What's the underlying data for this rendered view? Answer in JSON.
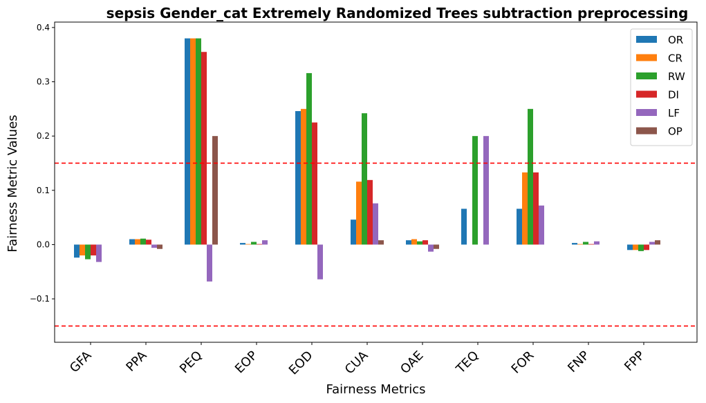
{
  "chart_data": {
    "type": "bar",
    "title": "sepsis Gender_cat Extremely Randomized Trees subtraction preprocessing",
    "xlabel": "Fairness Metrics",
    "ylabel": "Fairness Metric Values",
    "ylim": [
      -0.18,
      0.41
    ],
    "yticks": [
      -0.1,
      0.0,
      0.1,
      0.2,
      0.3,
      0.4
    ],
    "ytick_labels": [
      "−0.1",
      "0.0",
      "0.1",
      "0.2",
      "0.3",
      "0.4"
    ],
    "categories": [
      "GFA",
      "PPA",
      "PEQ",
      "EOP",
      "EOD",
      "CUA",
      "OAE",
      "TEQ",
      "FOR",
      "FNP",
      "FPP"
    ],
    "series": [
      {
        "name": "OR",
        "color": "#1f77b4",
        "values": [
          -0.024,
          0.01,
          0.38,
          0.003,
          0.246,
          0.046,
          0.008,
          0.066,
          0.066,
          0.003,
          -0.01
        ]
      },
      {
        "name": "CR",
        "color": "#ff7f0e",
        "values": [
          -0.02,
          0.01,
          0.38,
          0.001,
          0.25,
          0.116,
          0.01,
          0.0,
          0.133,
          0.001,
          -0.01
        ]
      },
      {
        "name": "RW",
        "color": "#2ca02c",
        "values": [
          -0.027,
          0.011,
          0.38,
          0.005,
          0.316,
          0.242,
          0.006,
          0.2,
          0.25,
          0.005,
          -0.012
        ]
      },
      {
        "name": "DI",
        "color": "#d62728",
        "values": [
          -0.02,
          0.009,
          0.355,
          0.001,
          0.225,
          0.119,
          0.008,
          0.0,
          0.133,
          0.001,
          -0.01
        ]
      },
      {
        "name": "LF",
        "color": "#9467bd",
        "values": [
          -0.032,
          -0.006,
          -0.068,
          0.008,
          -0.064,
          0.076,
          -0.013,
          0.2,
          0.072,
          0.006,
          0.005
        ]
      },
      {
        "name": "OP",
        "color": "#8c564b",
        "values": [
          0.0,
          -0.008,
          0.2,
          0.0,
          0.0,
          0.008,
          -0.008,
          0.0,
          0.0,
          0.0,
          0.008
        ]
      }
    ],
    "reference_lines": [
      0.15,
      -0.15
    ],
    "reference_line_color": "#ff0000",
    "legend_position": "top-right",
    "grid": false
  }
}
